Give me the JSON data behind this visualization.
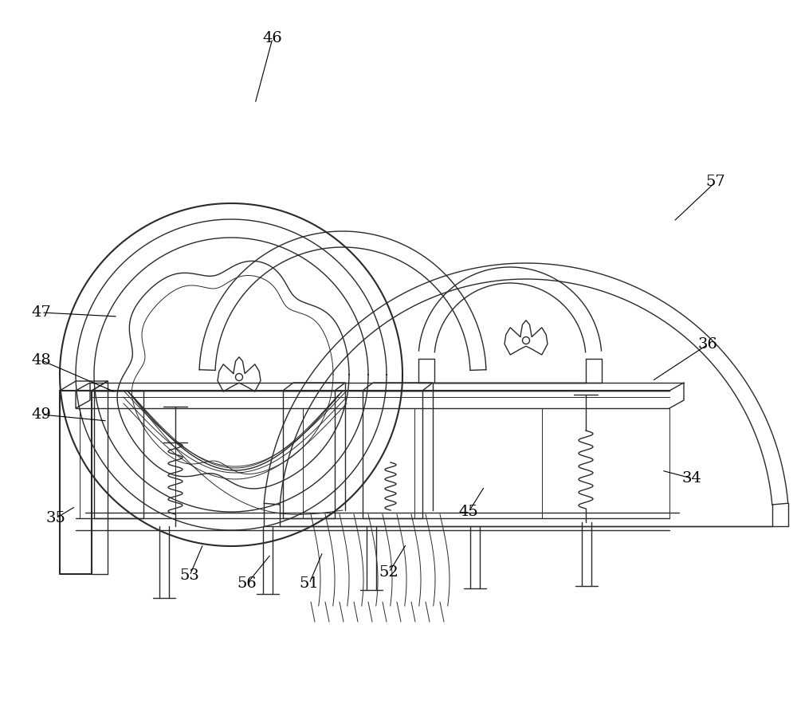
{
  "bg_color": "#ffffff",
  "lc": "#2a2a2a",
  "lw": 1.0,
  "lw2": 1.5,
  "lw3": 0.7,
  "label_fs": 14,
  "label_color": "#000000",
  "labels": [
    [
      "46",
      342,
      48
    ],
    [
      "47",
      52,
      392
    ],
    [
      "48",
      52,
      452
    ],
    [
      "49",
      52,
      520
    ],
    [
      "35",
      70,
      650
    ],
    [
      "53",
      238,
      722
    ],
    [
      "56",
      310,
      732
    ],
    [
      "51",
      388,
      732
    ],
    [
      "52",
      488,
      718
    ],
    [
      "45",
      588,
      642
    ],
    [
      "34",
      868,
      600
    ],
    [
      "36",
      888,
      432
    ],
    [
      "57",
      898,
      228
    ]
  ],
  "label_lines": [
    [
      "46",
      342,
      48,
      320,
      130
    ],
    [
      "47",
      52,
      392,
      148,
      397
    ],
    [
      "48",
      52,
      452,
      145,
      492
    ],
    [
      "49",
      52,
      520,
      135,
      528
    ],
    [
      "35",
      70,
      650,
      95,
      635
    ],
    [
      "53",
      238,
      722,
      255,
      682
    ],
    [
      "56",
      310,
      732,
      340,
      695
    ],
    [
      "51",
      388,
      732,
      405,
      692
    ],
    [
      "52",
      488,
      718,
      510,
      682
    ],
    [
      "45",
      588,
      642,
      608,
      610
    ],
    [
      "34",
      868,
      600,
      830,
      590
    ],
    [
      "36",
      888,
      432,
      818,
      478
    ],
    [
      "57",
      898,
      228,
      845,
      278
    ]
  ]
}
